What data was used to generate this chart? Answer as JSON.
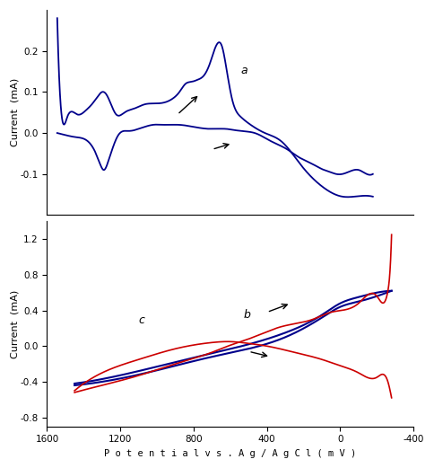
{
  "top_panel": {
    "ylabel": "Current  (mA)",
    "ylim": [
      -0.2,
      0.3
    ],
    "yticks": [
      -0.1,
      -0.1,
      0.0,
      0.1,
      0.2
    ],
    "ytick_labels": [
      "-0.1",
      "-0.1",
      "0.0",
      "0.1",
      "0.2"
    ],
    "xlim": [
      1400,
      -400
    ],
    "color": "#00008B"
  },
  "bottom_panel": {
    "ylabel": "Current  (mA)",
    "ylim": [
      -0.9,
      1.4
    ],
    "yticks": [
      -0.8,
      -0.4,
      0.0,
      0.4,
      0.8,
      1.2
    ],
    "ytick_labels": [
      "-0.8",
      "-0.4",
      "0.0",
      "0.4",
      "0.8",
      "1.2"
    ],
    "xlim": [
      1600,
      -400
    ],
    "xticks": [
      1600,
      1200,
      800,
      400,
      0,
      -400
    ],
    "xlabel": "P o t e n t i a l v s . A g / A g C l ( m V )",
    "color_b": "#00008B",
    "color_c": "#CC0000"
  },
  "fig_bgcolor": "#ffffff",
  "line_color_blue": "#00008B",
  "line_color_red": "#CC0000"
}
